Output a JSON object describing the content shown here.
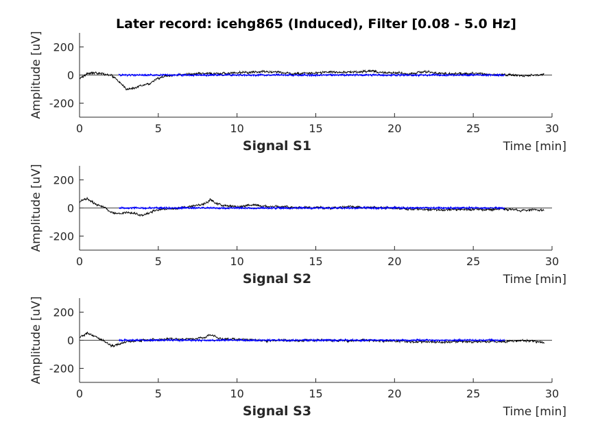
{
  "figure": {
    "title": "Later record: icehg865 (Induced), Filter [0.08 - 5.0 Hz]"
  },
  "chart_data": [
    {
      "type": "line",
      "panel_title": "Signal S1",
      "xlabel": "Time [min]",
      "ylabel": "Amplitude [uV]",
      "xlim": [
        0,
        30
      ],
      "ylim": [
        -300,
        300
      ],
      "xticks": [
        "0",
        "5",
        "10",
        "15",
        "20",
        "25",
        "30"
      ],
      "yticks": [
        "200",
        "0",
        "-200"
      ],
      "grid": false,
      "series": [
        {
          "color": "#000000",
          "x": [
            0,
            0.5,
            1,
            1.5,
            2,
            2.5,
            3,
            3.5,
            4,
            4.5,
            5,
            6,
            7,
            8,
            9,
            10,
            11,
            12,
            13,
            14,
            15,
            16,
            17,
            18,
            18.5,
            19,
            20,
            21,
            22,
            23,
            24,
            25,
            26,
            27,
            28,
            29,
            29.5
          ],
          "y": [
            -20,
            10,
            15,
            10,
            0,
            -50,
            -100,
            -90,
            -70,
            -60,
            -20,
            0,
            5,
            10,
            10,
            15,
            20,
            25,
            15,
            10,
            15,
            20,
            20,
            25,
            30,
            20,
            15,
            10,
            25,
            10,
            10,
            10,
            5,
            0,
            -5,
            0,
            5
          ]
        },
        {
          "color": "#0000ff",
          "x": [
            2.5,
            27
          ],
          "y": [
            0,
            0
          ]
        }
      ]
    },
    {
      "type": "line",
      "panel_title": "Signal S2",
      "xlabel": "Time [min]",
      "ylabel": "Amplitude [uV]",
      "xlim": [
        0,
        30
      ],
      "ylim": [
        -300,
        300
      ],
      "xticks": [
        "0",
        "5",
        "10",
        "15",
        "20",
        "25",
        "30"
      ],
      "yticks": [
        "200",
        "0",
        "-200"
      ],
      "grid": false,
      "series": [
        {
          "color": "#000000",
          "x": [
            0,
            0.5,
            1,
            1.5,
            2,
            2.5,
            3,
            3.5,
            4,
            4.5,
            5,
            6,
            7,
            8,
            8.3,
            9,
            10,
            11,
            12,
            13,
            14,
            15,
            16,
            17,
            18,
            19,
            20,
            21,
            22,
            23,
            24,
            25,
            26,
            27,
            28,
            29,
            29.5
          ],
          "y": [
            40,
            70,
            30,
            10,
            -30,
            -40,
            -30,
            -40,
            -50,
            -30,
            -10,
            -5,
            10,
            30,
            60,
            20,
            10,
            20,
            10,
            10,
            0,
            5,
            0,
            10,
            0,
            5,
            0,
            -5,
            -10,
            -15,
            -10,
            -10,
            -10,
            -5,
            -20,
            -10,
            -20
          ]
        },
        {
          "color": "#0000ff",
          "x": [
            2.5,
            27
          ],
          "y": [
            0,
            0
          ]
        }
      ]
    },
    {
      "type": "line",
      "panel_title": "Signal S3",
      "xlabel": "Time [min]",
      "ylabel": "Amplitude [uV]",
      "xlim": [
        0,
        30
      ],
      "ylim": [
        -300,
        300
      ],
      "xticks": [
        "0",
        "5",
        "10",
        "15",
        "20",
        "25",
        "30"
      ],
      "yticks": [
        "200",
        "0",
        "-200"
      ],
      "grid": false,
      "series": [
        {
          "color": "#000000",
          "x": [
            0,
            0.5,
            1,
            1.5,
            2,
            2.5,
            3,
            4,
            5,
            6,
            7,
            8,
            8.3,
            9,
            10,
            11,
            12,
            13,
            14,
            15,
            16,
            17,
            18,
            19,
            20,
            21,
            22,
            23,
            24,
            25,
            26,
            27,
            28,
            29,
            29.5
          ],
          "y": [
            20,
            50,
            20,
            0,
            -40,
            -30,
            -10,
            0,
            5,
            10,
            10,
            20,
            40,
            10,
            5,
            0,
            -5,
            0,
            -5,
            0,
            0,
            -5,
            0,
            -5,
            -5,
            -10,
            -10,
            -15,
            -10,
            -10,
            -10,
            -10,
            0,
            -10,
            -15
          ]
        },
        {
          "color": "#0000ff",
          "x": [
            2.5,
            27
          ],
          "y": [
            0,
            0
          ]
        }
      ]
    }
  ]
}
